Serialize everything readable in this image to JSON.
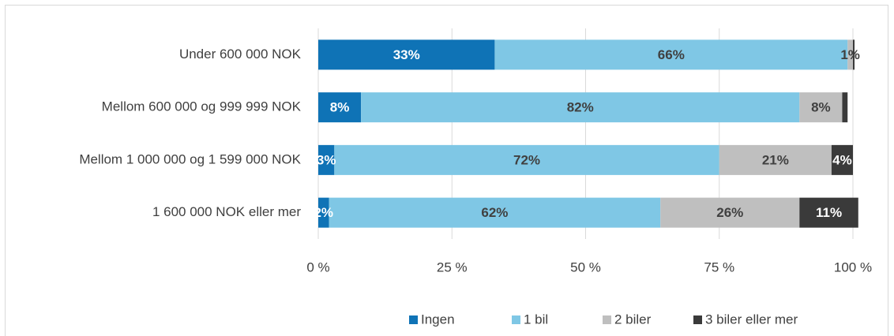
{
  "chart_data": {
    "type": "stacked-bar-horizontal",
    "categories": [
      "Under 600 000 NOK",
      "Mellom 600 000 og 999 999 NOK",
      "Mellom 1 000 000 og 1 599 000 NOK",
      "1 600 000 NOK eller mer"
    ],
    "series": [
      {
        "name": "Ingen",
        "color": "#0f73b6",
        "values": [
          33,
          8,
          3,
          2
        ],
        "value_labels": [
          "33%",
          "8%",
          "3%",
          "2%"
        ]
      },
      {
        "name": "1 bil",
        "color": "#7fc7e5",
        "values": [
          66,
          82,
          72,
          62
        ],
        "value_labels": [
          "66%",
          "82%",
          "72%",
          "62%"
        ]
      },
      {
        "name": "2 biler",
        "color": "#bfbfbf",
        "values": [
          1,
          8,
          21,
          26
        ],
        "value_labels": [
          "1%",
          "8%",
          "21%",
          "26%"
        ]
      },
      {
        "name": "3 biler eller mer",
        "color": "#3a3a3a",
        "values": [
          0.3,
          1,
          4,
          11
        ],
        "value_labels": [
          null,
          null,
          "4%",
          "11%"
        ]
      }
    ],
    "xlim": [
      0,
      100
    ],
    "xticks": [
      {
        "value": 0,
        "label": "0 %"
      },
      {
        "value": 25,
        "label": "25 %"
      },
      {
        "value": 50,
        "label": "50 %"
      },
      {
        "value": 75,
        "label": "75 %"
      },
      {
        "value": 100,
        "label": "100 %"
      }
    ],
    "grid": true,
    "legend": "bottom"
  }
}
